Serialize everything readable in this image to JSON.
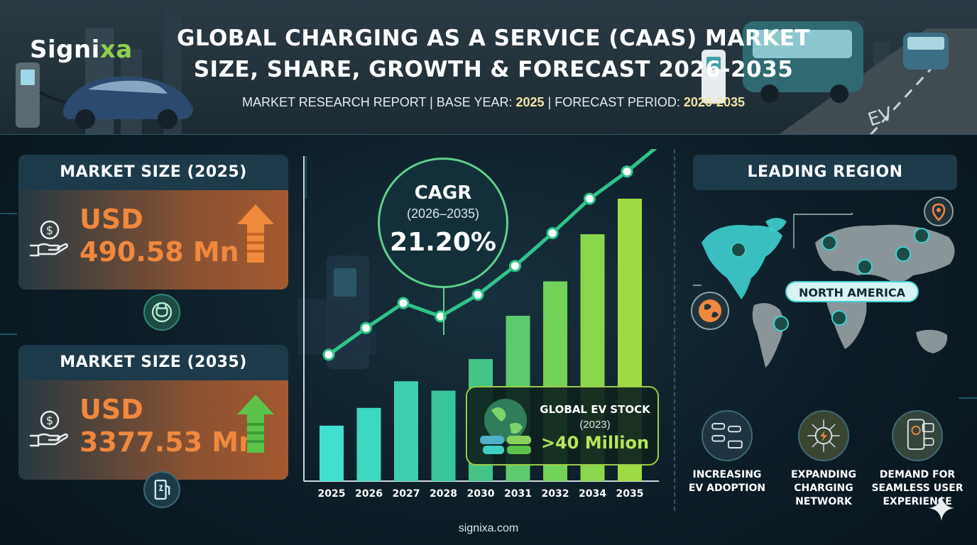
{
  "header": {
    "logo_text": "Signi",
    "logo_accent": "xa",
    "title_line1": "GLOBAL CHARGING AS A SERVICE (CAAS) MARKET",
    "title_line2": "SIZE, SHARE, GROWTH & FORECAST 2026-2035",
    "subtitle_prefix": "MARKET RESEARCH REPORT | BASE YEAR: ",
    "base_year": "2025",
    "subtitle_mid": " | FORECAST PERIOD: ",
    "forecast_period": "2026-2035"
  },
  "market_2025": {
    "heading": "MARKET SIZE (2025)",
    "currency": "USD",
    "value": "490.58 Mn",
    "icon": "money-hand-icon",
    "arrow_color": "#f08a3c"
  },
  "market_2035": {
    "heading": "MARKET SIZE (2035)",
    "currency": "USD",
    "value": "3377.53 Mn",
    "icon": "money-hand-icon",
    "arrow_color": "#5cc24a"
  },
  "cagr": {
    "label": "CAGR",
    "period": "(2026–2035)",
    "value": "21.20%"
  },
  "ev_stock": {
    "title": "GLOBAL EV STOCK",
    "year": "(2023)",
    "value": ">40 Million"
  },
  "chart_data": {
    "type": "bar",
    "categories": [
      "2025",
      "2026",
      "2027",
      "2028",
      "2030",
      "2031",
      "2032",
      "2034",
      "2035"
    ],
    "values": [
      1.0,
      1.32,
      1.8,
      1.63,
      2.2,
      2.98,
      3.6,
      4.45,
      5.09
    ],
    "trend_line": [
      1.0,
      1.48,
      1.93,
      1.69,
      2.08,
      2.6,
      3.19,
      3.81,
      4.3
    ],
    "units": "relative (unlabeled axis)",
    "title": "",
    "xlabel": "",
    "ylabel": "",
    "bar_colors": [
      "#3fe0d0",
      "#3fd8c0",
      "#3fcfae",
      "#38c69c",
      "#45c488",
      "#5ccb6e",
      "#74d15a",
      "#8ad64c",
      "#9fdc44"
    ],
    "line_color": "#2fc48a"
  },
  "region": {
    "heading": "LEADING REGION",
    "name": "NORTH AMERICA",
    "highlight_color": "#3fd0d0"
  },
  "drivers": [
    {
      "line1": "INCREASING",
      "line2": "EV ADOPTION",
      "line3": "",
      "icon": "cars-icon"
    },
    {
      "line1": "EXPANDING",
      "line2": "CHARGING",
      "line3": "NETWORK",
      "icon": "network-bolt-icon"
    },
    {
      "line1": "DEMAND FOR",
      "line2": "SEAMLESS USER",
      "line3": "EXPERIENCE",
      "icon": "phone-app-icon"
    }
  ],
  "footer": {
    "site": "signixa.com"
  },
  "colors": {
    "orange": "#f0883e",
    "green": "#8fd14f",
    "teal": "#3fd0d0",
    "navy": "#0c1c26"
  }
}
